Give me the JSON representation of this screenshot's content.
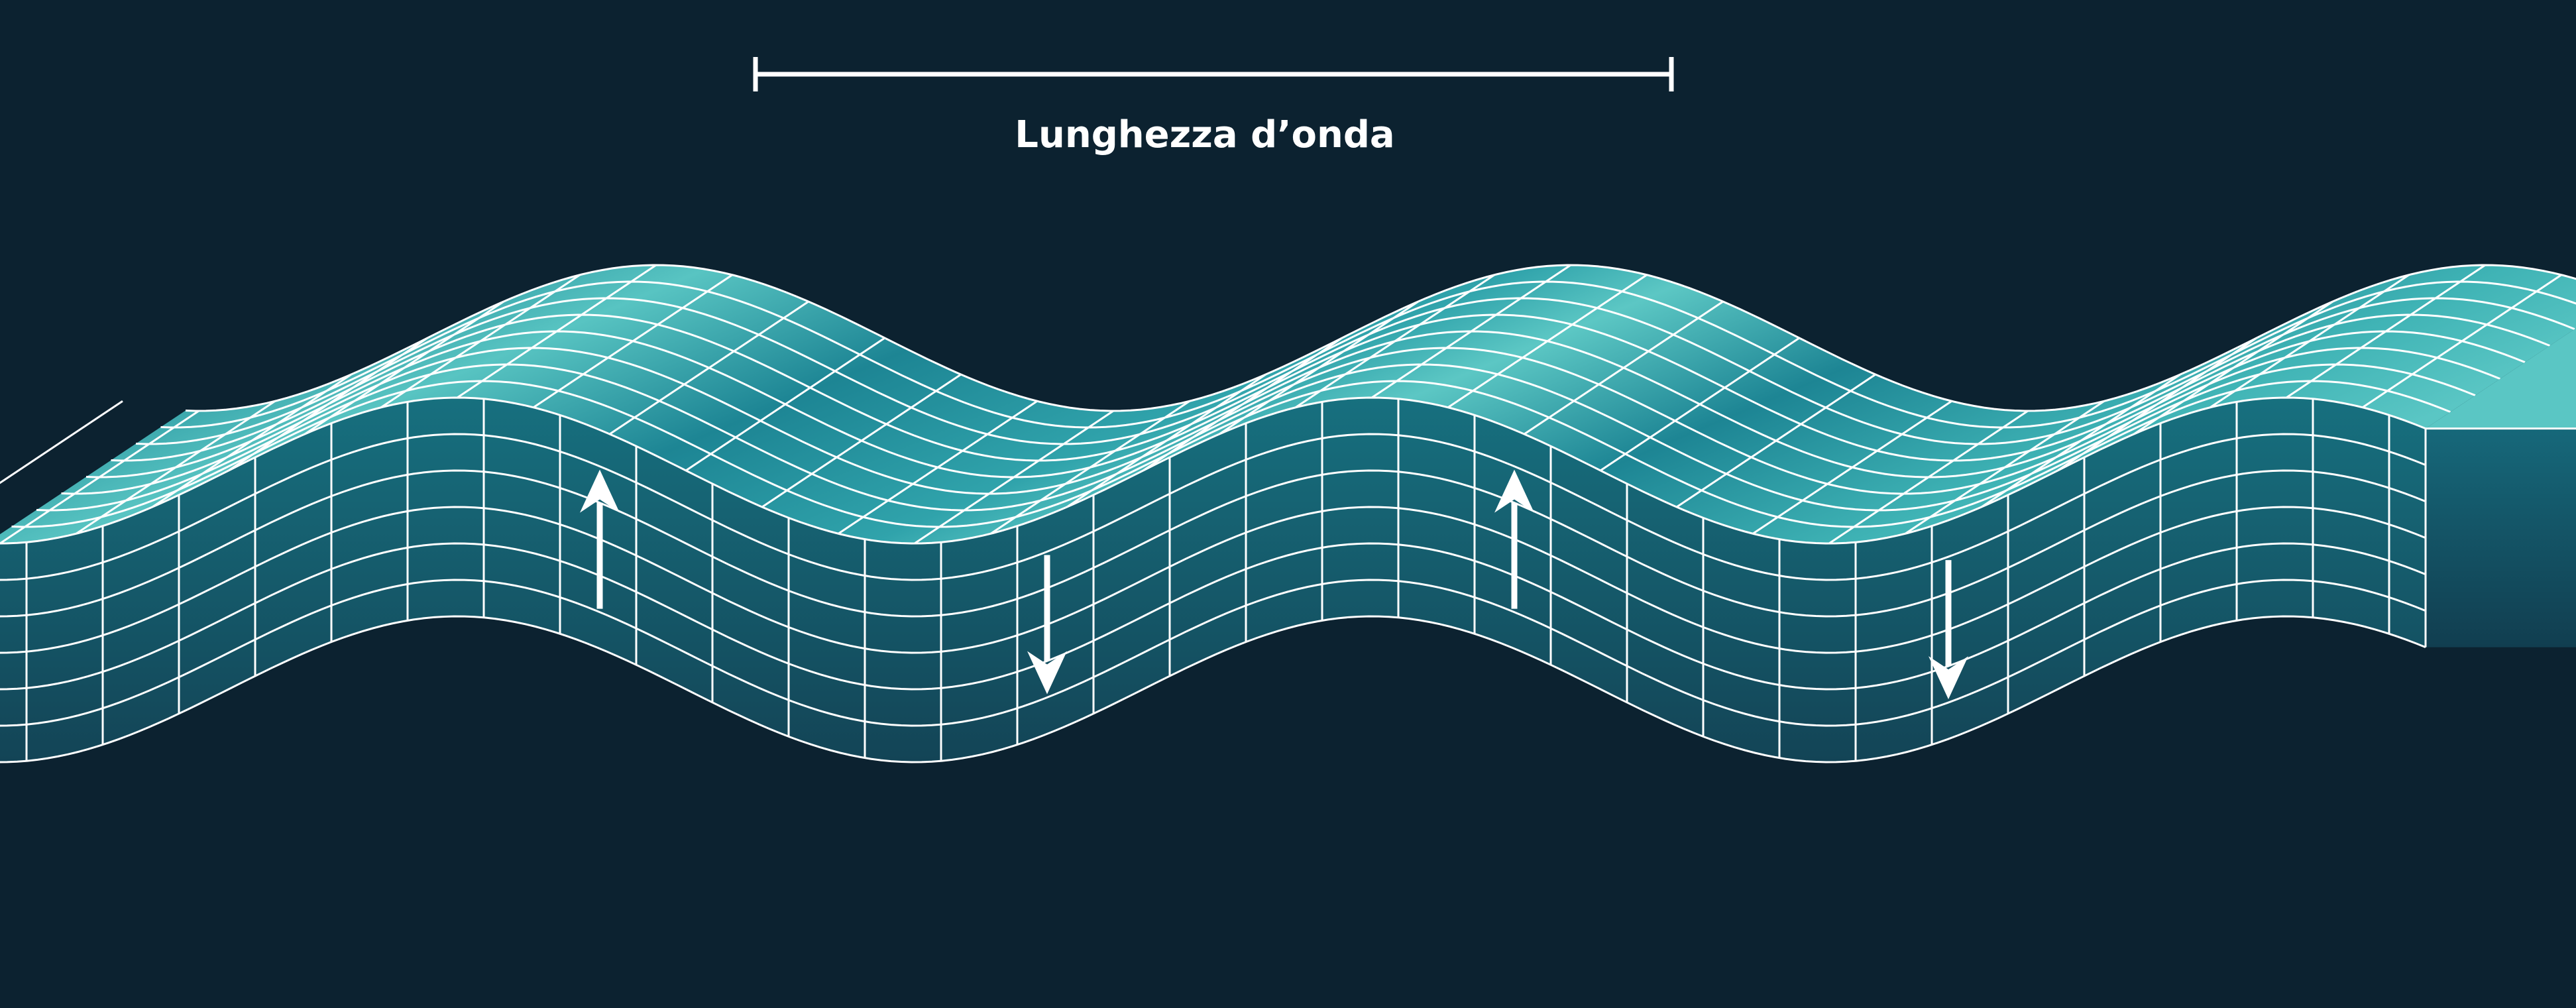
{
  "diagram": {
    "wavelength_label": "Lunghezza d’onda"
  },
  "colors": {
    "background": "#0c2230",
    "surface_light": "#5cc7c4",
    "surface_mid": "#2ea2aa",
    "surface_dark": "#1d8594",
    "front_top": "#17707f",
    "front_bottom": "#134456",
    "grid_lines": "#ffffff",
    "arrows": "#ffffff"
  },
  "arrows": [
    {
      "direction": "up"
    },
    {
      "direction": "down"
    },
    {
      "direction": "up"
    },
    {
      "direction": "down"
    }
  ]
}
